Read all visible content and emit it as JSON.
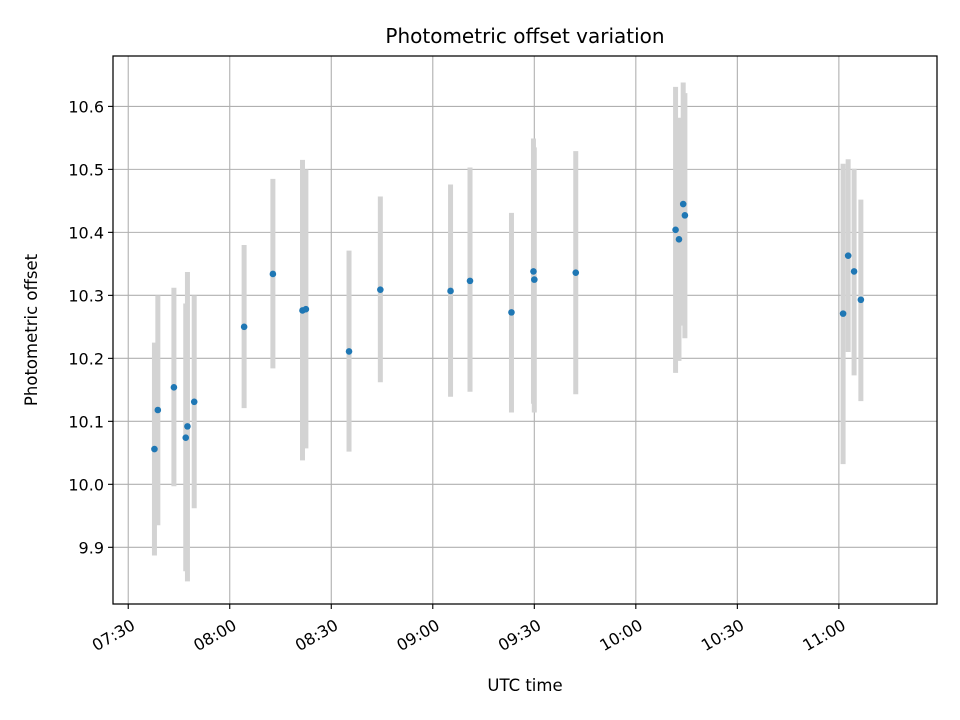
{
  "chart_data": {
    "type": "scatter",
    "title": "Photometric offset variation",
    "xlabel": "UTC time",
    "ylabel": "Photometric offset",
    "grid": true,
    "x_axis": {
      "unit": "time of day (HH:MM, UTC)",
      "range": [
        "07:25:30",
        "11:29:00"
      ],
      "ticks": [
        "07:30",
        "08:00",
        "08:30",
        "09:00",
        "09:30",
        "10:00",
        "10:30",
        "11:00"
      ]
    },
    "y_axis": {
      "range": [
        9.81,
        10.68
      ],
      "ticks": [
        "9.9",
        "10.0",
        "10.1",
        "10.2",
        "10.3",
        "10.4",
        "10.5",
        "10.6"
      ]
    },
    "colors": {
      "points": "#1f77b4",
      "error_bars": "#d3d3d3",
      "grid": "#b0b0b0"
    },
    "points": [
      {
        "x": "07:37:45",
        "y": 10.056,
        "ylow": 9.887,
        "yhigh": 10.225
      },
      {
        "x": "07:38:45",
        "y": 10.118,
        "ylow": 9.935,
        "yhigh": 10.3
      },
      {
        "x": "07:43:30",
        "y": 10.154,
        "ylow": 9.997,
        "yhigh": 10.312
      },
      {
        "x": "07:47:00",
        "y": 10.074,
        "ylow": 9.862,
        "yhigh": 10.287
      },
      {
        "x": "07:47:30",
        "y": 10.092,
        "ylow": 9.846,
        "yhigh": 10.337
      },
      {
        "x": "07:49:30",
        "y": 10.131,
        "ylow": 9.962,
        "yhigh": 10.3
      },
      {
        "x": "08:04:15",
        "y": 10.25,
        "ylow": 10.121,
        "yhigh": 10.38
      },
      {
        "x": "08:12:45",
        "y": 10.334,
        "ylow": 10.184,
        "yhigh": 10.485
      },
      {
        "x": "08:21:30",
        "y": 10.276,
        "ylow": 10.038,
        "yhigh": 10.515
      },
      {
        "x": "08:22:30",
        "y": 10.278,
        "ylow": 10.057,
        "yhigh": 10.5
      },
      {
        "x": "08:35:15",
        "y": 10.211,
        "ylow": 10.052,
        "yhigh": 10.371
      },
      {
        "x": "08:44:30",
        "y": 10.309,
        "ylow": 10.162,
        "yhigh": 10.457
      },
      {
        "x": "09:05:15",
        "y": 10.307,
        "ylow": 10.139,
        "yhigh": 10.476
      },
      {
        "x": "09:11:00",
        "y": 10.323,
        "ylow": 10.147,
        "yhigh": 10.503
      },
      {
        "x": "09:23:15",
        "y": 10.273,
        "ylow": 10.114,
        "yhigh": 10.431
      },
      {
        "x": "09:29:45",
        "y": 10.338,
        "ylow": 10.128,
        "yhigh": 10.549
      },
      {
        "x": "09:30:00",
        "y": 10.325,
        "ylow": 10.114,
        "yhigh": 10.535
      },
      {
        "x": "09:42:15",
        "y": 10.336,
        "ylow": 10.143,
        "yhigh": 10.529
      },
      {
        "x": "10:11:45",
        "y": 10.404,
        "ylow": 10.177,
        "yhigh": 10.631
      },
      {
        "x": "10:12:45",
        "y": 10.389,
        "ylow": 10.196,
        "yhigh": 10.582
      },
      {
        "x": "10:14:00",
        "y": 10.445,
        "ylow": 10.252,
        "yhigh": 10.638
      },
      {
        "x": "10:14:30",
        "y": 10.427,
        "ylow": 10.232,
        "yhigh": 10.621
      },
      {
        "x": "11:01:15",
        "y": 10.271,
        "ylow": 10.032,
        "yhigh": 10.509
      },
      {
        "x": "11:02:45",
        "y": 10.363,
        "ylow": 10.21,
        "yhigh": 10.516
      },
      {
        "x": "11:04:30",
        "y": 10.338,
        "ylow": 10.173,
        "yhigh": 10.501
      },
      {
        "x": "11:06:30",
        "y": 10.293,
        "ylow": 10.132,
        "yhigh": 10.452
      }
    ]
  }
}
